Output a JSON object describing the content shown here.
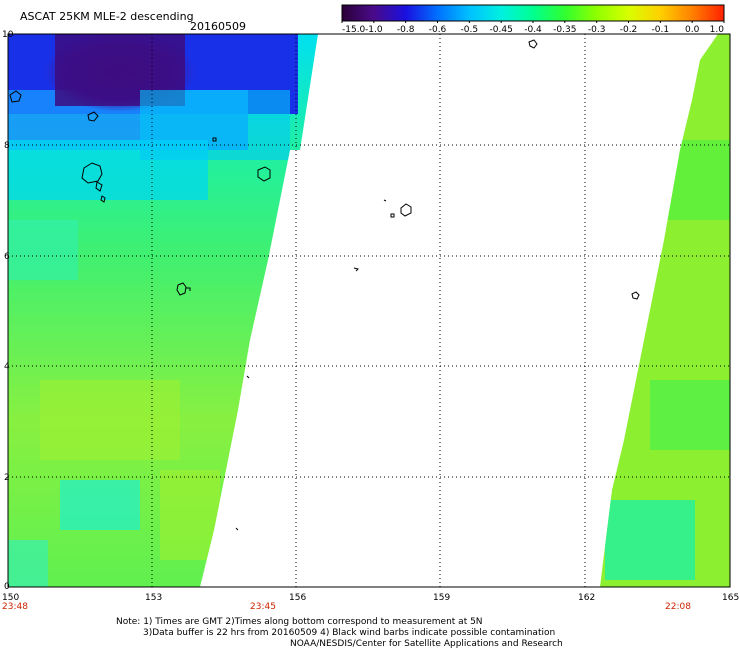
{
  "header": {
    "product": "ASCAT 25KM MLE-2 descending",
    "date": "20160509"
  },
  "colorbar": {
    "labels": [
      "-15.0",
      "-1.0",
      "-0.8",
      "-0.6",
      "-0.5",
      "-0.45",
      "-0.4",
      "-0.35",
      "-0.3",
      "-0.2",
      "-0.1",
      "0.0",
      "1.0"
    ],
    "colors": [
      "#2a0036",
      "#4a0a8a",
      "#1a10e0",
      "#0070ff",
      "#00c0ff",
      "#00f0e0",
      "#00ff90",
      "#30ff30",
      "#90ff00",
      "#d8ff00",
      "#ffd000",
      "#ff8000",
      "#ff2000"
    ]
  },
  "axes": {
    "x_ticks": [
      "150",
      "153",
      "156",
      "159",
      "162",
      "165"
    ],
    "y_ticks": [
      "0",
      "2",
      "4",
      "6",
      "8",
      "10"
    ]
  },
  "times": {
    "t1": "23:48",
    "t2": "23:45",
    "t3": "22:08"
  },
  "notes": {
    "line1": "Note: 1) Times are GMT 2)Times along bottom correspond to measurement at 5N",
    "line2": "3)Data buffer is 22 hrs from 20160509 4) Black wind barbs indicate possible contamination",
    "line3": "NOAA/NESDIS/Center for Satellite Applications and Research"
  }
}
